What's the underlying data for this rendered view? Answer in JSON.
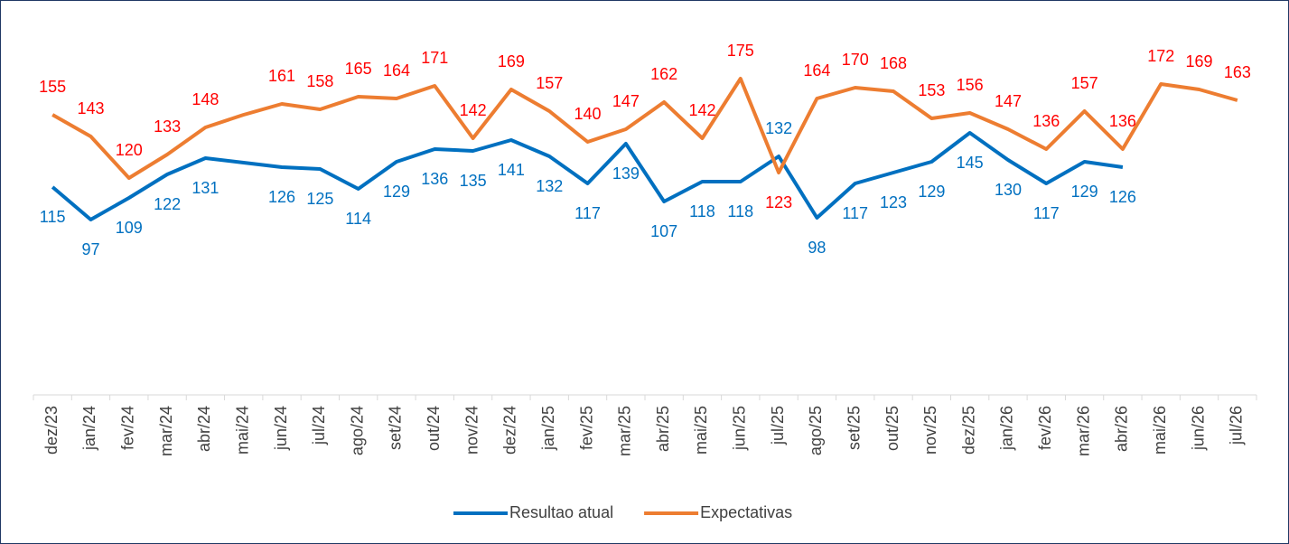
{
  "chart_data": {
    "type": "line",
    "categories": [
      "dez/23",
      "jan/24",
      "fev/24",
      "mar/24",
      "abr/24",
      "mai/24",
      "jun/24",
      "jul/24",
      "ago/24",
      "set/24",
      "out/24",
      "nov/24",
      "dez/24",
      "jan/25",
      "fev/25",
      "mar/25",
      "abr/25",
      "mai/25",
      "jun/25",
      "jul/25",
      "ago/25",
      "set/25",
      "out/25",
      "nov/25",
      "dez/25",
      "jan/26",
      "fev/26",
      "mar/26",
      "abr/26",
      "mai/26",
      "jun/26",
      "jul/26"
    ],
    "series": [
      {
        "name": "Resultao atual",
        "color": "#0070c0",
        "label_color": "#0070c0",
        "values": [
          115,
          97,
          109,
          122,
          131,
          128.5,
          126,
          125,
          114,
          129,
          136,
          135,
          141,
          132,
          117,
          139,
          107,
          118,
          118,
          132,
          98,
          117,
          123,
          129,
          145,
          130,
          117,
          129,
          126,
          null,
          null,
          null
        ],
        "value_labels": [
          "115",
          "97",
          "109",
          "122",
          "131",
          null,
          "126",
          "125",
          "114",
          "129",
          "136",
          "135",
          "141",
          "132",
          "117",
          "139",
          "107",
          "118",
          "118",
          "132",
          "98",
          "117",
          "123",
          "129",
          "145",
          "130",
          "117",
          "129",
          "126",
          null,
          null,
          null
        ]
      },
      {
        "name": "Expectativas",
        "color": "#ed7d31",
        "label_color": "#ff0000",
        "values": [
          155,
          143,
          120,
          133,
          148,
          155,
          161,
          158,
          165,
          164,
          171,
          142,
          169,
          157,
          140,
          147,
          162,
          142,
          175,
          123,
          164,
          170,
          168,
          153,
          156,
          147,
          136,
          157,
          136,
          172,
          169,
          163
        ],
        "value_labels": [
          "155",
          "143",
          "120",
          "133",
          "148",
          null,
          "161",
          "158",
          "165",
          "164",
          "171",
          "142",
          "169",
          "157",
          "140",
          "147",
          "162",
          "142",
          "175",
          "123",
          "164",
          "170",
          "168",
          "153",
          "156",
          "147",
          "136",
          "157",
          "136",
          "172",
          "169",
          "163"
        ]
      }
    ],
    "ylim": [
      0,
      200
    ],
    "legend": "bottom"
  }
}
